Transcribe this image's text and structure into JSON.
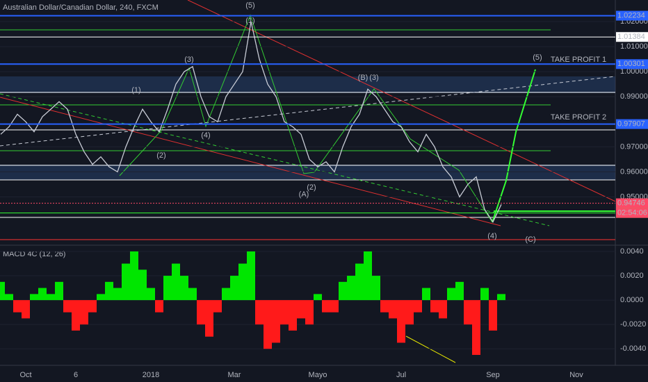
{
  "chart_data": [
    {
      "type": "line",
      "title": "Australian Dollar/Canadian Dollar, 240, FXCM",
      "categories": [
        null,
        null,
        null,
        "Oct",
        null,
        null,
        null,
        null,
        null,
        "6",
        null,
        null,
        null,
        null,
        null,
        null,
        null,
        null,
        "2018",
        null,
        null,
        null,
        null,
        null,
        null,
        null,
        null,
        null,
        "Mar",
        null,
        null,
        null,
        null,
        null,
        null,
        null,
        null,
        null,
        "Mayo",
        null,
        null,
        null,
        null,
        null,
        null,
        null,
        null,
        null,
        "Jul",
        null,
        null,
        null,
        null,
        null,
        null,
        null,
        null,
        null,
        null,
        "Sep",
        null,
        null,
        null,
        null,
        null,
        null,
        null,
        null,
        null,
        "Nov",
        null,
        null,
        null
      ],
      "values": [
        0.975,
        0.978,
        0.983,
        0.98,
        0.976,
        0.982,
        0.985,
        0.988,
        0.985,
        0.975,
        0.968,
        0.963,
        0.966,
        0.962,
        0.96,
        0.97,
        0.978,
        0.985,
        0.98,
        0.976,
        0.985,
        0.995,
        1.0,
        1.002,
        0.99,
        0.982,
        0.98,
        0.99,
        0.995,
        1.0,
        1.02,
        1.005,
        0.995,
        0.99,
        0.98,
        0.978,
        0.975,
        0.965,
        0.962,
        0.964,
        0.96,
        0.97,
        0.978,
        0.983,
        0.993,
        0.99,
        0.985,
        0.98,
        0.978,
        0.972,
        0.968,
        0.975,
        0.97,
        0.962,
        0.958,
        0.95,
        0.955,
        0.958,
        0.945,
        0.94,
        0.947,
        null,
        null,
        null,
        null,
        null,
        null,
        null,
        null,
        null,
        null,
        null,
        null
      ],
      "color": "#c8ccd6",
      "ylim": [
        0.931,
        1.0286
      ],
      "yticks": [
        {
          "value": 1.02,
          "label": "1.02000"
        },
        {
          "value": 1.01,
          "label": "1.01000"
        },
        {
          "value": 1.0,
          "label": "1.00000"
        },
        {
          "value": 0.99,
          "label": "0.99000"
        },
        {
          "value": 0.97,
          "label": "0.97000"
        },
        {
          "value": 0.96,
          "label": "0.96000"
        },
        {
          "value": 0.95,
          "label": "0.95000"
        }
      ],
      "levels": [
        {
          "value": 1.02234,
          "color": "#2962ff"
        },
        {
          "value": 1.01384,
          "color": "#ffffff"
        },
        {
          "value": 1.00301,
          "color": "#2962ff"
        },
        {
          "value": 0.97907,
          "color": "#2962ff"
        },
        {
          "value": 0.94746,
          "color": "#ff4a68"
        },
        {
          "value": 0.94359,
          "color": "#33ff33"
        }
      ],
      "countdown": "02:54:06",
      "annotations": [
        "(5)",
        "(1)",
        "(3)",
        "(1)",
        "(2)",
        "(4)",
        "(B)",
        "(3)",
        "(A)",
        "(2)",
        "(4)",
        "(C)",
        "(5)",
        "TAKE PROFIT 1",
        "TAKE PROFIT 2"
      ],
      "grid": true
    },
    {
      "type": "bar",
      "title": "MACD 4C (12, 26)",
      "values": [
        0.0015,
        0.0005,
        -0.001,
        -0.0015,
        0.0005,
        0.001,
        0.0005,
        0.0015,
        -0.001,
        -0.0025,
        -0.002,
        -0.001,
        0.0005,
        0.0015,
        0.001,
        0.003,
        0.004,
        0.0025,
        0.001,
        -0.001,
        0.002,
        0.003,
        0.002,
        0.001,
        -0.002,
        -0.003,
        -0.001,
        0.001,
        0.002,
        0.003,
        0.004,
        -0.002,
        -0.004,
        -0.0035,
        -0.002,
        -0.0025,
        -0.0015,
        -0.002,
        0.0005,
        -0.001,
        -0.001,
        0.0015,
        0.002,
        0.003,
        0.004,
        0.002,
        -0.001,
        -0.0015,
        -0.0035,
        -0.002,
        -0.001,
        0.001,
        -0.001,
        -0.0015,
        0.001,
        0.0015,
        -0.002,
        -0.0045,
        0.001,
        -0.0025,
        0.0005
      ],
      "color": "#00e600",
      "negative_color": "#ff1a1a",
      "ylim": [
        -0.0053,
        0.0044
      ],
      "yticks": [
        {
          "value": 0.004,
          "label": "0.0040"
        },
        {
          "value": 0.002,
          "label": "0.0020"
        },
        {
          "value": 0,
          "label": "0.0000"
        },
        {
          "value": -0.002,
          "label": "-0.0020"
        },
        {
          "value": -0.004,
          "label": "-0.0040"
        }
      ],
      "grid": true
    }
  ]
}
